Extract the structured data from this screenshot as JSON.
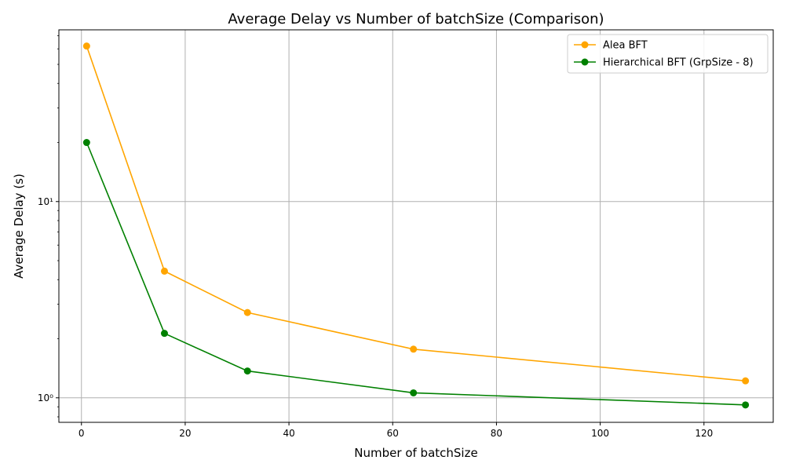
{
  "chart_data": {
    "type": "line",
    "title": "Average Delay vs Number of batchSize (Comparison)",
    "xlabel": "Number of batchSize",
    "ylabel": "Average Delay (s)",
    "x": [
      1,
      16,
      32,
      64,
      128
    ],
    "xlim": [
      -4.35,
      133.35
    ],
    "ylim": [
      0.75,
      75
    ],
    "yscale": "log",
    "grid": true,
    "legend_position": "top-right",
    "x_ticks": [
      0,
      20,
      40,
      60,
      80,
      100,
      120
    ],
    "y_ticks": [
      1,
      10
    ],
    "y_tick_labels": [
      "10⁰",
      "10¹"
    ],
    "series": [
      {
        "name": "Alea BFT",
        "color": "#ffa500",
        "values": [
          62.0,
          4.42,
          2.72,
          1.77,
          1.22
        ]
      },
      {
        "name": "Hierarchical BFT (GrpSize - 8)",
        "color": "#008000",
        "values": [
          20.0,
          2.13,
          1.37,
          1.06,
          0.92
        ]
      }
    ]
  }
}
